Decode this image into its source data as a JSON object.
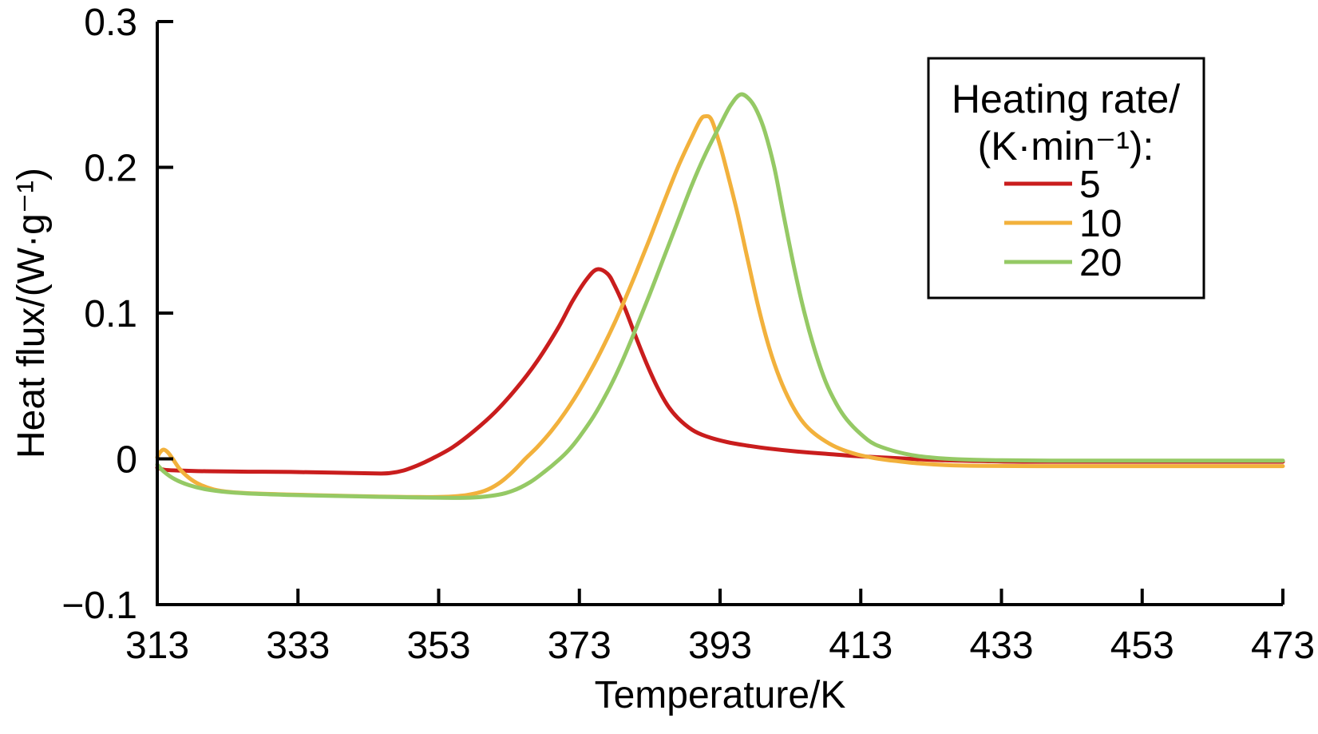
{
  "figure": {
    "background": "#ffffff",
    "axis_color": "#000000",
    "text_color": "#000000"
  },
  "chart_data": {
    "type": "line",
    "title": "",
    "xlabel": "Temperature/K",
    "ylabel": "Heat flux/(W·g⁻¹)",
    "xlim": [
      313,
      473
    ],
    "ylim": [
      -0.1,
      0.3
    ],
    "grid": false,
    "xticks": {
      "values": [
        313,
        333,
        353,
        373,
        393,
        413,
        433,
        453,
        473
      ],
      "labels": [
        "313",
        "333",
        "353",
        "373",
        "393",
        "413",
        "433",
        "453",
        "473"
      ]
    },
    "yticks": {
      "values": [
        -0.1,
        0,
        0.1,
        0.2,
        0.3
      ],
      "labels": [
        "−0.1",
        "0",
        "0.1",
        "0.2",
        "0.3"
      ]
    },
    "legend": {
      "position": "top-right",
      "title_line1": "Heating rate/",
      "title_line2": "(K·min⁻¹):",
      "entries": [
        {
          "label": "5",
          "color": "#c91d1d"
        },
        {
          "label": "10",
          "color": "#f2b13c"
        },
        {
          "label": "20",
          "color": "#95c965"
        }
      ]
    },
    "series": [
      {
        "name": "5",
        "color": "#c91d1d",
        "peak": {
          "x": 375.5,
          "y": 0.13
        },
        "points": [
          [
            313,
            -0.006
          ],
          [
            314,
            -0.0075
          ],
          [
            316,
            -0.008
          ],
          [
            320,
            -0.0085
          ],
          [
            326,
            -0.0088
          ],
          [
            332,
            -0.009
          ],
          [
            338,
            -0.0095
          ],
          [
            344,
            -0.01
          ],
          [
            346,
            -0.0098
          ],
          [
            348,
            -0.008
          ],
          [
            350,
            -0.0045
          ],
          [
            352,
            0
          ],
          [
            355,
            0.008
          ],
          [
            358,
            0.019
          ],
          [
            361,
            0.032
          ],
          [
            364,
            0.048
          ],
          [
            367,
            0.067
          ],
          [
            370,
            0.09
          ],
          [
            372,
            0.108
          ],
          [
            374,
            0.123
          ],
          [
            375.5,
            0.13
          ],
          [
            377,
            0.127
          ],
          [
            378,
            0.119
          ],
          [
            379.5,
            0.103
          ],
          [
            381,
            0.084
          ],
          [
            382.5,
            0.066
          ],
          [
            384,
            0.05
          ],
          [
            385.5,
            0.037
          ],
          [
            387,
            0.028
          ],
          [
            389,
            0.02
          ],
          [
            391,
            0.0155
          ],
          [
            394,
            0.0115
          ],
          [
            397,
            0.009
          ],
          [
            400,
            0.007
          ],
          [
            404,
            0.005
          ],
          [
            408,
            0.0035
          ],
          [
            412,
            0.002
          ],
          [
            416,
            0.001
          ],
          [
            420,
            0
          ],
          [
            425,
            -0.001
          ],
          [
            430,
            -0.0015
          ],
          [
            436,
            -0.002
          ],
          [
            445,
            -0.002
          ],
          [
            455,
            -0.002
          ],
          [
            465,
            -0.002
          ],
          [
            473,
            -0.002
          ]
        ]
      },
      {
        "name": "10",
        "color": "#f2b13c",
        "peak": {
          "x": 390.9,
          "y": 0.235
        },
        "points": [
          [
            313,
            0.001
          ],
          [
            313.4,
            0.0045
          ],
          [
            313.9,
            0.0063
          ],
          [
            314.5,
            0.0045
          ],
          [
            315.2,
            0
          ],
          [
            316.2,
            -0.007
          ],
          [
            317.5,
            -0.013
          ],
          [
            319,
            -0.0175
          ],
          [
            321,
            -0.021
          ],
          [
            323.5,
            -0.0228
          ],
          [
            327,
            -0.0238
          ],
          [
            332,
            -0.0245
          ],
          [
            338,
            -0.0252
          ],
          [
            344,
            -0.0258
          ],
          [
            350,
            -0.0262
          ],
          [
            354,
            -0.026
          ],
          [
            357,
            -0.0248
          ],
          [
            359.5,
            -0.022
          ],
          [
            361.5,
            -0.017
          ],
          [
            363.5,
            -0.009
          ],
          [
            365.3,
            0
          ],
          [
            367,
            0.008
          ],
          [
            369,
            0.019
          ],
          [
            371,
            0.032
          ],
          [
            373,
            0.047
          ],
          [
            375,
            0.064
          ],
          [
            377,
            0.083
          ],
          [
            379,
            0.104
          ],
          [
            381,
            0.127
          ],
          [
            383,
            0.151
          ],
          [
            385,
            0.176
          ],
          [
            387,
            0.2
          ],
          [
            389,
            0.221
          ],
          [
            390.2,
            0.2325
          ],
          [
            390.9,
            0.235
          ],
          [
            391.8,
            0.2325
          ],
          [
            393,
            0.215
          ],
          [
            394,
            0.197
          ],
          [
            395.5,
            0.168
          ],
          [
            397,
            0.135
          ],
          [
            398.5,
            0.103
          ],
          [
            400,
            0.076
          ],
          [
            401.5,
            0.055
          ],
          [
            403,
            0.039
          ],
          [
            404.5,
            0.027
          ],
          [
            406,
            0.019
          ],
          [
            408,
            0.012
          ],
          [
            410,
            0.007
          ],
          [
            412.5,
            0.003
          ],
          [
            415,
            0.0005
          ],
          [
            418,
            -0.0015
          ],
          [
            421,
            -0.003
          ],
          [
            425,
            -0.0042
          ],
          [
            430,
            -0.0048
          ],
          [
            438,
            -0.005
          ],
          [
            450,
            -0.005
          ],
          [
            462,
            -0.005
          ],
          [
            473,
            -0.005
          ]
        ]
      },
      {
        "name": "20",
        "color": "#95c965",
        "peak": {
          "x": 395.9,
          "y": 0.25
        },
        "points": [
          [
            313,
            -0.004
          ],
          [
            314,
            -0.009
          ],
          [
            315.5,
            -0.014
          ],
          [
            317.5,
            -0.018
          ],
          [
            320,
            -0.021
          ],
          [
            323,
            -0.0228
          ],
          [
            327,
            -0.024
          ],
          [
            332,
            -0.0248
          ],
          [
            338,
            -0.0254
          ],
          [
            344,
            -0.026
          ],
          [
            350,
            -0.0265
          ],
          [
            355,
            -0.0268
          ],
          [
            358,
            -0.0265
          ],
          [
            361,
            -0.025
          ],
          [
            363.5,
            -0.022
          ],
          [
            366,
            -0.016
          ],
          [
            368,
            -0.009
          ],
          [
            370,
            -0.001
          ],
          [
            371.5,
            0.006
          ],
          [
            373,
            0.015
          ],
          [
            375,
            0.029
          ],
          [
            377,
            0.046
          ],
          [
            379,
            0.066
          ],
          [
            381,
            0.089
          ],
          [
            383,
            0.113
          ],
          [
            385,
            0.138
          ],
          [
            387,
            0.163
          ],
          [
            389,
            0.188
          ],
          [
            391,
            0.21
          ],
          [
            393,
            0.229
          ],
          [
            394.5,
            0.2425
          ],
          [
            395.9,
            0.25
          ],
          [
            397.2,
            0.2465
          ],
          [
            398.3,
            0.238
          ],
          [
            399.4,
            0.224
          ],
          [
            400.7,
            0.2
          ],
          [
            402,
            0.168
          ],
          [
            403.5,
            0.132
          ],
          [
            405,
            0.1
          ],
          [
            406.5,
            0.074
          ],
          [
            408,
            0.053
          ],
          [
            409.5,
            0.038
          ],
          [
            411,
            0.027
          ],
          [
            413,
            0.017
          ],
          [
            415,
            0.01
          ],
          [
            418,
            0.005
          ],
          [
            421,
            0.002
          ],
          [
            424,
            0.0005
          ],
          [
            428,
            -0.0005
          ],
          [
            433,
            -0.001
          ],
          [
            440,
            -0.0012
          ],
          [
            450,
            -0.0012
          ],
          [
            460,
            -0.0012
          ],
          [
            473,
            -0.0012
          ]
        ]
      }
    ]
  }
}
